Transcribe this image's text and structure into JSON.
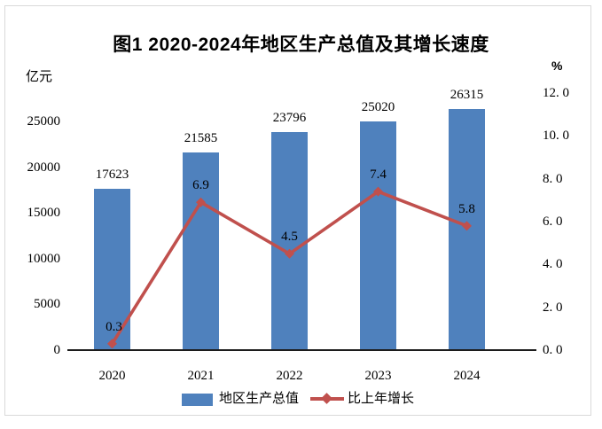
{
  "chart_data": {
    "type": "bar",
    "subtype": "bar-line-combo",
    "title": "图1 2020-2024年地区生产总值及其增长速度",
    "categories": [
      "2020",
      "2021",
      "2022",
      "2023",
      "2024"
    ],
    "series": [
      {
        "name": "地区生产总值",
        "type": "bar",
        "axis": "left",
        "values": [
          17623,
          21585,
          23796,
          25020,
          26315
        ],
        "data_labels": [
          "17623",
          "21585",
          "23796",
          "25020",
          "26315"
        ],
        "color": "#4F81BD"
      },
      {
        "name": "比上年增长",
        "type": "line",
        "axis": "right",
        "values": [
          0.3,
          6.9,
          4.5,
          7.4,
          5.8
        ],
        "data_labels": [
          "0.3",
          "6.9",
          "4.5",
          "7.4",
          "5.8"
        ],
        "color": "#C0504D",
        "marker": "diamond"
      }
    ],
    "left_axis": {
      "title": "亿元",
      "ticks": [
        0,
        5000,
        10000,
        15000,
        20000,
        25000
      ],
      "tick_labels": [
        "0",
        "5000",
        "10000",
        "15000",
        "20000",
        "25000"
      ],
      "range": [
        0,
        28100
      ]
    },
    "right_axis": {
      "title": "%",
      "ticks": [
        0,
        2,
        4,
        6,
        8,
        10,
        12
      ],
      "tick_labels": [
        "0. 0",
        "2. 0",
        "4. 0",
        "6. 0",
        "8. 0",
        "10. 0",
        "12. 0"
      ],
      "range": [
        0,
        12
      ]
    },
    "legend": {
      "position": "bottom",
      "items": [
        "地区生产总值",
        "比上年增长"
      ]
    },
    "grid": false,
    "colors": {
      "bar": "#4F81BD",
      "line": "#C0504D",
      "text": "#000000",
      "frame_border": "#d9d9d9",
      "axis_line": "#1c1c1c"
    }
  }
}
